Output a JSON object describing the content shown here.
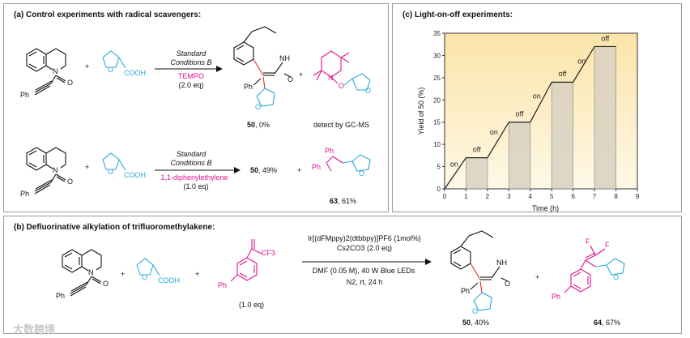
{
  "panel_a": {
    "title": "(a) Control experiments with radical scavengers:",
    "row1": {
      "reactant_atom_N": "N",
      "reactant_atom_O": "O",
      "reactant_ph": "Ph",
      "plus1": "+",
      "thf_O": "O",
      "cooh": "COOH",
      "cond_line1": "Standard",
      "cond_line2": "Conditions B",
      "additive": "TEMPO",
      "additive_eq": "(2.0 eq)",
      "product_nh": "NH",
      "product_O": "O",
      "product_ph": "Ph",
      "product_thf_O": "O",
      "product_label_num": "50",
      "product_label_yield": ", 0%",
      "plus2": "+",
      "tempo_N": "N",
      "tempo_O": "O",
      "tempo_thf_O": "O",
      "tempo_note": "detect by GC-MS"
    },
    "row2": {
      "reactant_atom_N": "N",
      "reactant_atom_O": "O",
      "reactant_ph": "Ph",
      "plus1": "+",
      "thf_O": "O",
      "cooh": "COOH",
      "cond_line1": "Standard",
      "cond_line2": "Conditions B",
      "additive": "1,1-diphenylethylene",
      "additive_eq": "(1.0 eq)",
      "product_num": "50",
      "product_yield": ", 49%",
      "plus2": "+",
      "adduct_ph1": "Ph",
      "adduct_ph2": "Ph",
      "adduct_O": "O",
      "adduct_label_num": "63",
      "adduct_label_yield": ", 61%"
    }
  },
  "panel_b": {
    "title": "(b) Defluorinative alkylation of trifluoromethylakene:",
    "reactant_atom_N": "N",
    "reactant_atom_O": "O",
    "reactant_ph": "Ph",
    "plus1": "+",
    "thf_O": "O",
    "cooh": "COOH",
    "plus2": "+",
    "cf3": "CF3",
    "alkene_ph": "Ph",
    "alkene_eq": "(1.0 eq)",
    "cond_catalyst": "Ir[(dFMppy)2(dtbbpy)]PF6 (1mol%)",
    "cond_base": "Cs2CO3 (2.0 eq)",
    "cond_solvent": "DMF (0.05 M), 40 W Blue LEDs",
    "cond_atm": "N2, rt, 24 h",
    "product_nh": "NH",
    "product_O": "O",
    "product_ph": "Ph",
    "product_thf_O": "O",
    "product_label_num": "50",
    "product_label_yield": ", 40%",
    "plus3": "+",
    "f1": "F",
    "f2": "F",
    "adduct_ph": "Ph",
    "adduct_O": "O",
    "adduct_label_num": "64",
    "adduct_label_yield": ", 67%"
  },
  "watermark": "大数跨境",
  "chart_data": {
    "type": "line",
    "title": "(c) Light-on-off experiments:",
    "xlabel": "Time (h)",
    "ylabel": "Yield of 50 (%)",
    "xlim": [
      0,
      9
    ],
    "ylim": [
      0,
      35
    ],
    "xticks": [
      0,
      1,
      2,
      3,
      4,
      5,
      6,
      7,
      8,
      9
    ],
    "yticks": [
      0,
      5,
      10,
      15,
      20,
      25,
      30,
      35
    ],
    "x": [
      0,
      1,
      2,
      3,
      4,
      5,
      6,
      7,
      8
    ],
    "y": [
      0,
      7,
      7,
      15,
      15,
      24,
      24,
      32,
      32
    ],
    "off_intervals": [
      [
        1,
        2
      ],
      [
        3,
        4
      ],
      [
        5,
        6
      ],
      [
        7,
        8
      ]
    ],
    "annotations": [
      {
        "text": "on",
        "x": 0.45,
        "y": 5
      },
      {
        "text": "off",
        "x": 1.5,
        "y": 8.3
      },
      {
        "text": "on",
        "x": 2.3,
        "y": 12.2
      },
      {
        "text": "off",
        "x": 3.5,
        "y": 16.3
      },
      {
        "text": "on",
        "x": 4.3,
        "y": 20.3
      },
      {
        "text": "off",
        "x": 5.5,
        "y": 25.3
      },
      {
        "text": "on",
        "x": 6.4,
        "y": 28.2
      },
      {
        "text": "off",
        "x": 7.5,
        "y": 33.3
      }
    ],
    "colors": {
      "line": "#222222",
      "off_fill": "#d9d2c2",
      "off_edge": "#8c8c8c",
      "bg_top": "#fbe4a9",
      "bg_bottom": "#fff8e6"
    }
  }
}
